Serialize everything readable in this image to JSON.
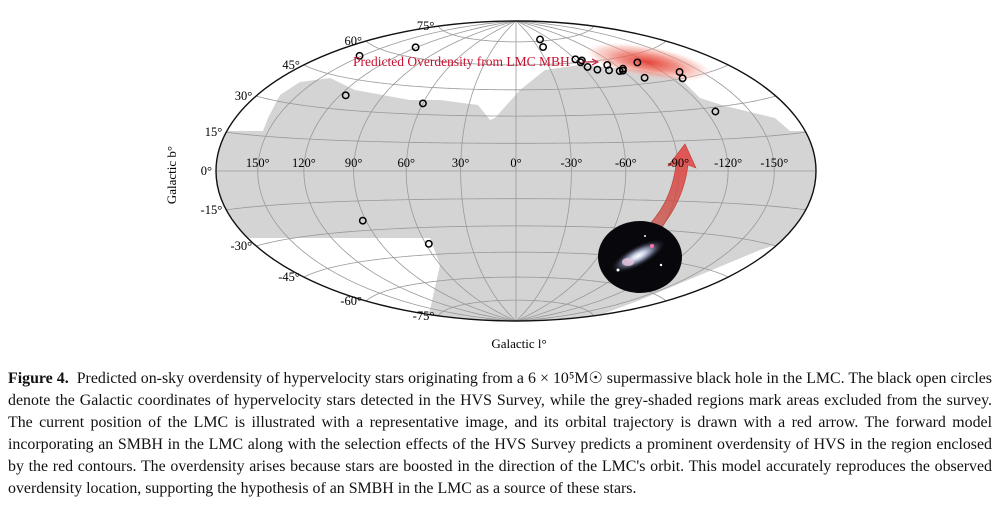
{
  "chart_data": {
    "type": "scatter",
    "projection": "aitoff-hammer (all-sky)",
    "xlabel": "Galactic l°",
    "ylabel": "Galactic b°",
    "x_ticks": [
      {
        "value": 150,
        "label": "150°"
      },
      {
        "value": 120,
        "label": "120°"
      },
      {
        "value": 90,
        "label": "90°"
      },
      {
        "value": 60,
        "label": "60°"
      },
      {
        "value": 30,
        "label": "30°"
      },
      {
        "value": 0,
        "label": "0°"
      },
      {
        "value": -30,
        "label": "-30°"
      },
      {
        "value": -60,
        "label": "-60°"
      },
      {
        "value": -90,
        "label": "-90°"
      },
      {
        "value": -120,
        "label": "-120°"
      },
      {
        "value": -150,
        "label": "-150°"
      }
    ],
    "y_ticks": [
      {
        "value": 75,
        "label": "75°"
      },
      {
        "value": 60,
        "label": "60°"
      },
      {
        "value": 45,
        "label": "45°"
      },
      {
        "value": 30,
        "label": "30°"
      },
      {
        "value": 15,
        "label": "15°"
      },
      {
        "value": 0,
        "label": "0°"
      },
      {
        "value": -15,
        "label": "-15°"
      },
      {
        "value": -30,
        "label": "-30°"
      },
      {
        "value": -45,
        "label": "-45°"
      },
      {
        "value": -60,
        "label": "-60°"
      },
      {
        "value": -75,
        "label": "-75°"
      }
    ],
    "annotation": {
      "text": "Predicted Overdensity from LMC MBH",
      "color": "#c8102e"
    },
    "grid": true,
    "colors": {
      "excluded": "#d4d4d4",
      "overdensity": "#e8453c",
      "arrow": "#d94a4a",
      "stars": "#000000"
    },
    "stars": [
      {
        "l": 152,
        "b": 55
      },
      {
        "l": 116,
        "b": 37
      },
      {
        "l": 60,
        "b": 36
      },
      {
        "l": 121,
        "b": 65
      },
      {
        "l": -37,
        "b": 71
      },
      {
        "l": -43,
        "b": 76
      },
      {
        "l": -60,
        "b": 62
      },
      {
        "l": -62,
        "b": 60
      },
      {
        "l": -65,
        "b": 61
      },
      {
        "l": -64,
        "b": 57
      },
      {
        "l": -70,
        "b": 55
      },
      {
        "l": -79,
        "b": 54
      },
      {
        "l": -83,
        "b": 57
      },
      {
        "l": -87,
        "b": 53
      },
      {
        "l": -90,
        "b": 53
      },
      {
        "l": -92,
        "b": 54
      },
      {
        "l": -100,
        "b": 48
      },
      {
        "l": -112,
        "b": 56
      },
      {
        "l": -128,
        "b": 45
      },
      {
        "l": -126,
        "b": 28
      },
      {
        "l": -133,
        "b": 48
      },
      {
        "l": 92,
        "b": -25
      },
      {
        "l": 58,
        "b": -39
      }
    ],
    "lmc_position": {
      "l": -80.5,
      "b": -32.9
    }
  },
  "caption": {
    "label": "Figure 4.",
    "text": "Predicted on-sky overdensity of hypervelocity stars originating from a 6 × 10⁵M☉ supermassive black hole in the LMC. The black open circles denote the Galactic coordinates of hypervelocity stars detected in the HVS Survey, while the grey-shaded regions mark areas excluded from the survey. The current position of the LMC is illustrated with a representative image, and its orbital trajectory is drawn with a red arrow. The forward model incorporating an SMBH in the LMC along with the selection effects of the HVS Survey predicts a prominent overdensity of HVS in the region enclosed by the red contours. The overdensity arises because stars are boosted in the direction of the LMC's orbit. This model accurately reproduces the observed overdensity location, supporting the hypothesis of an SMBH in the LMC as a source of these stars."
  }
}
